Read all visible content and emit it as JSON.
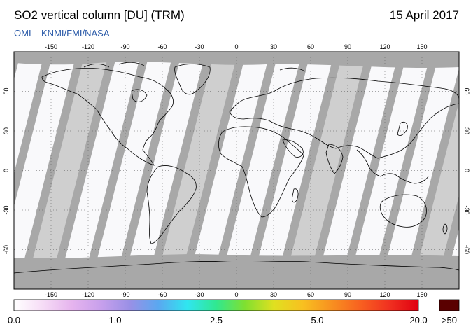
{
  "header": {
    "title": "SO2 vertical column [DU] (TRM)",
    "date": "15 April 2017",
    "credit": "OMI  –  KNMI/FMI/NASA"
  },
  "map": {
    "projection": "equirectangular",
    "lon_range": [
      -180,
      180
    ],
    "lat_range": [
      -90,
      90
    ],
    "lon_ticks": [
      -150,
      -120,
      -90,
      -60,
      -30,
      0,
      30,
      60,
      90,
      120,
      150
    ],
    "lon_tick_labels": [
      "-150",
      "-120",
      "-90",
      "-60",
      "-30",
      "0",
      "30",
      "60",
      "90",
      "120",
      "150"
    ],
    "lat_ticks": [
      60,
      30,
      0,
      -30,
      -60
    ],
    "lat_tick_labels": [
      "60",
      "30",
      "0",
      "-30",
      "-60"
    ],
    "background_color": "#ffffff",
    "no_data_color": "#a8a8a8",
    "swath_gap_color": "#cfcfcf",
    "coastline_color": "#000000"
  },
  "colorbar": {
    "colors": [
      "#ffffff",
      "#f6dcf6",
      "#e6b4ee",
      "#c8a0ec",
      "#9a90e6",
      "#5aa8f0",
      "#30e6f0",
      "#30e890",
      "#80e030",
      "#e0e020",
      "#f8c020",
      "#f89020",
      "#f86020",
      "#f03020",
      "#e00010"
    ],
    "labels": [
      "0.0",
      "1.0",
      "2.5",
      "5.0",
      "20.0"
    ],
    "overflow_label": ">50",
    "overflow_color": "#5a0000"
  }
}
